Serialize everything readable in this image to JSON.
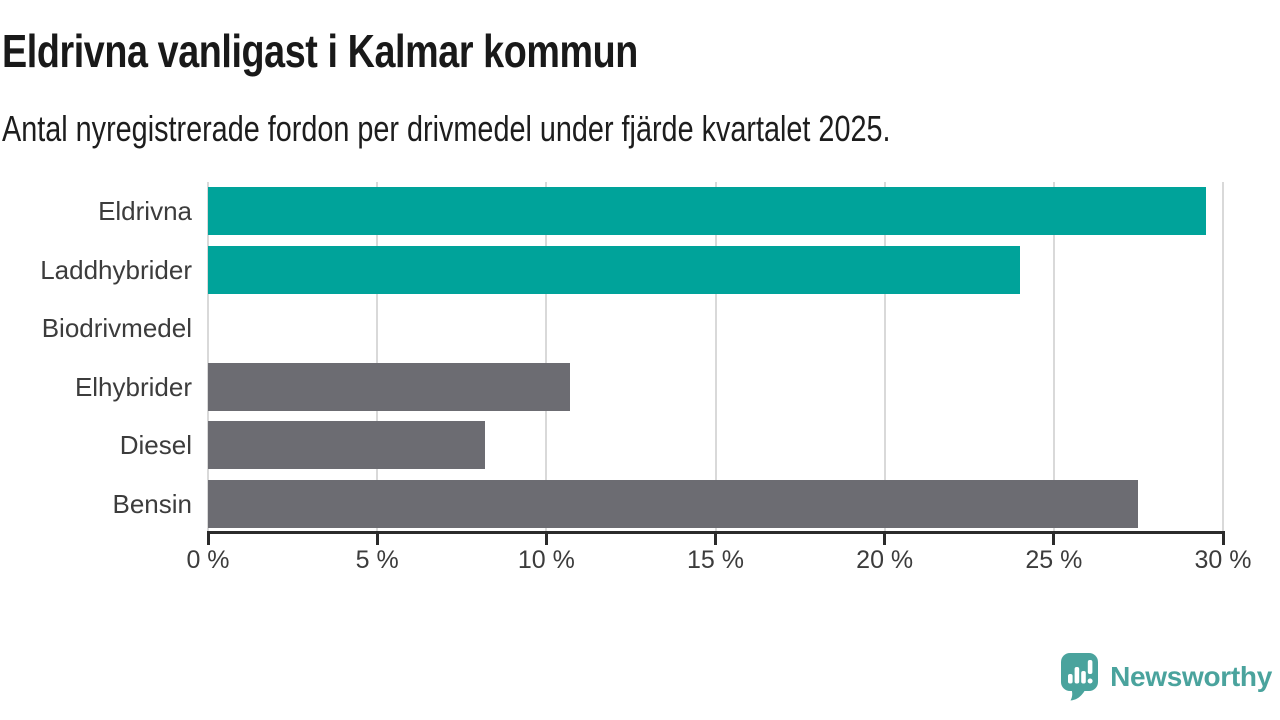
{
  "header": {
    "title": "Eldrivna vanligast i Kalmar kommun",
    "subtitle": "Antal nyregistrerade fordon per drivmedel under fjärde kvartalet 2025."
  },
  "chart_data": {
    "type": "bar",
    "orientation": "horizontal",
    "title": "Eldrivna vanligast i Kalmar kommun",
    "subtitle": "Antal nyregistrerade fordon per drivmedel under fjärde kvartalet 2025.",
    "categories": [
      "Eldrivna",
      "Laddhybrider",
      "Biodrivmedel",
      "Elhybrider",
      "Diesel",
      "Bensin"
    ],
    "values": [
      29.5,
      24.0,
      0,
      10.7,
      8.2,
      27.5
    ],
    "unit": "%",
    "xlabel": "",
    "ylabel": "",
    "xlim": [
      0,
      30
    ],
    "xticks": [
      0,
      5,
      10,
      15,
      20,
      25,
      30
    ],
    "xtick_labels": [
      "0 %",
      "5 %",
      "10 %",
      "15 %",
      "20 %",
      "25 %",
      "30 %"
    ],
    "grid": true,
    "legend": false,
    "bar_colors": [
      "#00a39a",
      "#00a39a",
      "#6c6c72",
      "#6c6c72",
      "#6c6c72",
      "#6c6c72"
    ],
    "highlight_color": "#00a39a",
    "default_color": "#6c6c72",
    "grid_color": "#d9d9d9",
    "axis_color": "#2b2b2b",
    "label_color": "#3c3c3c",
    "title_color": "#191919"
  },
  "branding": {
    "logo_text": "Newsworthy",
    "logo_color": "#4aa39d"
  }
}
